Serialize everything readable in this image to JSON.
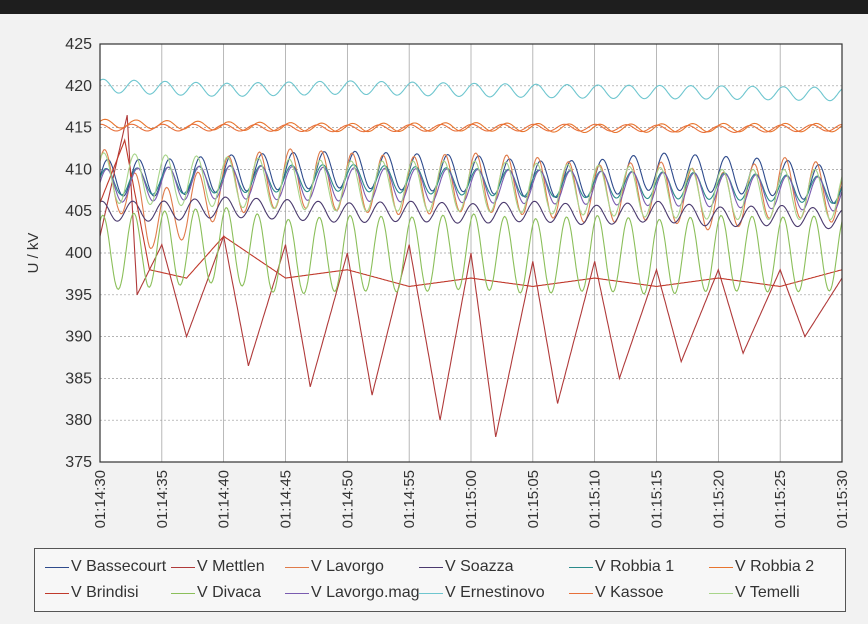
{
  "chart_data": {
    "type": "line",
    "title": "",
    "xlabel": "",
    "ylabel": "U / kV",
    "ylim": [
      375,
      425
    ],
    "yticks": [
      "425",
      "420",
      "415",
      "410",
      "405",
      "400",
      "395",
      "390",
      "385",
      "380",
      "375"
    ],
    "x_range_seconds": [
      0,
      60
    ],
    "x_tick_labels": [
      "01:14:30",
      "01:14:35",
      "01:14:40",
      "01:14:45",
      "01:14:50",
      "01:14:55",
      "01:15:00",
      "01:15:05",
      "01:15:10",
      "01:15:15",
      "01:15:20",
      "01:15:25",
      "01:15:30"
    ],
    "grid": true,
    "legend_position": "bottom",
    "series": [
      {
        "name": "V Bassecourt",
        "color": "#2f4b8c",
        "x": [
          0,
          5,
          10,
          15,
          20,
          25,
          30,
          35,
          40,
          45,
          50,
          55,
          60
        ],
        "values": [
          409,
          409,
          409.5,
          409.8,
          410,
          409.7,
          409.5,
          408.8,
          408.9,
          409.8,
          409.4,
          409,
          408
        ]
      },
      {
        "name": "V Mettlen",
        "color": "#b03a3a",
        "x": [
          0,
          2.2,
          3,
          5,
          7,
          10,
          12,
          15,
          17,
          20,
          22,
          25,
          27.5,
          30,
          32,
          35,
          37,
          40,
          42,
          45,
          47,
          50,
          52,
          55,
          57,
          60
        ],
        "values": [
          402,
          416.5,
          395,
          401,
          390,
          402,
          386.5,
          401,
          384,
          400,
          383,
          401,
          380,
          400,
          378,
          399,
          382,
          399,
          385,
          398,
          387,
          398,
          388,
          398,
          390,
          397
        ]
      },
      {
        "name": "V Lavorgo",
        "color": "#e07b4a",
        "x": [
          0,
          1.5,
          4,
          6,
          10,
          15,
          20,
          25,
          30,
          35,
          40,
          45,
          50,
          55,
          60
        ],
        "values": [
          409,
          408.5,
          404,
          404.5,
          408,
          409,
          408.5,
          408,
          408.5,
          408,
          407,
          407.5,
          406,
          408,
          407
        ]
      },
      {
        "name": "V Soazza",
        "color": "#4b3a6e",
        "x": [
          0,
          5,
          10,
          15,
          20,
          25,
          30,
          35,
          40,
          45,
          50,
          55,
          60
        ],
        "values": [
          405,
          405,
          405.5,
          405.2,
          404.8,
          405,
          404.7,
          405,
          404.5,
          405,
          404.3,
          404.5,
          404
        ]
      },
      {
        "name": "V Robbia 1",
        "color": "#2a8b8b",
        "x": [
          0,
          10,
          20,
          30,
          40,
          50,
          60
        ],
        "values": [
          408.5,
          408.8,
          409,
          408.5,
          408.2,
          408,
          407.5
        ]
      },
      {
        "name": "V Robbia 2",
        "color": "#e8752e",
        "x": [
          0,
          10,
          20,
          30,
          40,
          50,
          60
        ],
        "values": [
          415.5,
          415.2,
          415,
          415.1,
          414.9,
          415,
          415
        ]
      },
      {
        "name": "V Brindisi",
        "color": "#c0392b",
        "x": [
          0,
          2,
          4,
          7,
          10,
          15,
          20,
          25,
          30,
          35,
          40,
          45,
          50,
          55,
          60
        ],
        "values": [
          406,
          413.5,
          398,
          397,
          402,
          397,
          398,
          396,
          397,
          396,
          397,
          396,
          397,
          396,
          398
        ]
      },
      {
        "name": "V Divaca",
        "color": "#8bbf5a",
        "x": [
          0,
          5,
          10,
          15,
          20,
          25,
          30,
          35,
          40,
          45,
          50,
          55,
          60
        ],
        "values": [
          400,
          400.5,
          401,
          399.5,
          400,
          399.8,
          400.2,
          399.6,
          400,
          399.5,
          400,
          399.8,
          400
        ]
      },
      {
        "name": "V Lavorgo.mag",
        "color": "#7a5cb0",
        "x": [
          0,
          10,
          20,
          30,
          40,
          50,
          60
        ],
        "values": [
          408,
          408.5,
          408.2,
          408,
          407.8,
          407.5,
          407
        ]
      },
      {
        "name": "V Ernestinovo",
        "color": "#6ec6cf",
        "x": [
          0,
          10,
          20,
          30,
          40,
          50,
          60
        ],
        "values": [
          420,
          419.5,
          419.8,
          419.5,
          419.3,
          419.2,
          419
        ]
      },
      {
        "name": "V Kassoe",
        "color": "#e8703a",
        "x": [
          0,
          10,
          20,
          30,
          40,
          50,
          60
        ],
        "values": [
          415,
          415,
          414.9,
          415,
          415,
          414.8,
          415
        ]
      },
      {
        "name": "V Temelli",
        "color": "#a8d58a",
        "x": [
          0,
          10,
          20,
          30,
          40,
          50,
          60
        ],
        "values": [
          409,
          408.5,
          408,
          408,
          407.5,
          407,
          407
        ]
      }
    ]
  }
}
